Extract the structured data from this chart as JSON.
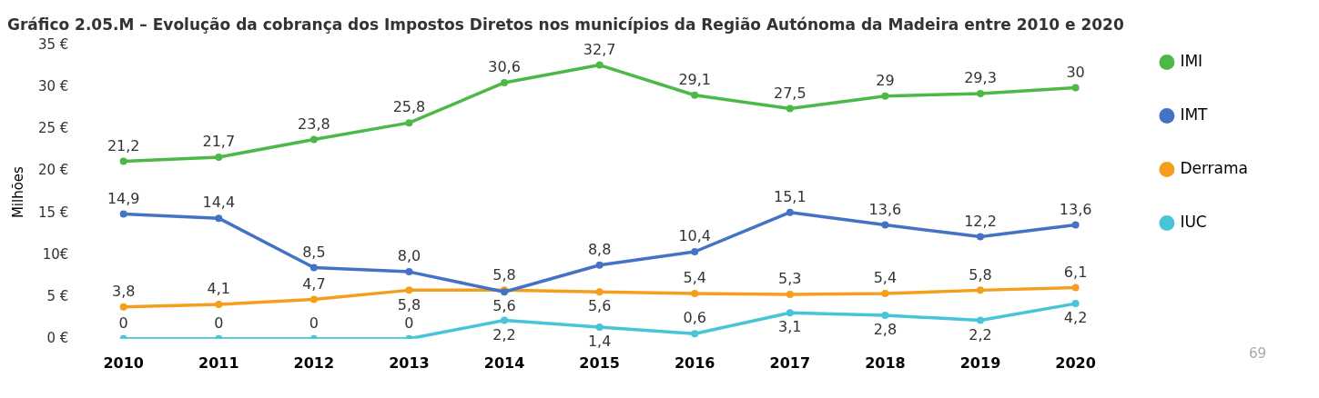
{
  "chart_data": {
    "type": "line",
    "title": "Gráfico 2.05.M – Evolução da cobrança dos Impostos Diretos nos municípios da Região Autónoma da Madeira entre 2010 e 2020",
    "ylabel": "Milhões",
    "categories": [
      "2010",
      "2011",
      "2012",
      "2013",
      "2014",
      "2015",
      "2016",
      "2017",
      "2018",
      "2019",
      "2020"
    ],
    "series": [
      {
        "name": "IMI",
        "color": "#4db848",
        "values": [
          21.2,
          21.7,
          23.8,
          25.8,
          30.6,
          32.7,
          29.1,
          27.5,
          29,
          29.3,
          30
        ],
        "value_labels": [
          "21,2",
          "21,7",
          "23,8",
          "25,8",
          "30,6",
          "32,7",
          "29,1",
          "27,5",
          "29",
          "29,3",
          "30"
        ]
      },
      {
        "name": "IMT",
        "color": "#4472c4",
        "values": [
          14.9,
          14.4,
          8.5,
          8.0,
          5.6,
          8.8,
          10.4,
          15.1,
          13.6,
          12.2,
          13.6
        ],
        "value_labels": [
          "14,9",
          "14,4",
          "8,5",
          "8,0",
          "5,6",
          "8,8",
          "10,4",
          "15,1",
          "13,6",
          "12,2",
          "13,6"
        ]
      },
      {
        "name": "Derrama",
        "color": "#f59e1b",
        "values": [
          3.8,
          4.1,
          4.7,
          5.8,
          5.8,
          5.6,
          5.4,
          5.3,
          5.4,
          5.8,
          6.1
        ],
        "value_labels": [
          "3,8",
          "4,1",
          "4,7",
          "5,8",
          "5,8",
          "5,6",
          "5,4",
          "5,3",
          "5,4",
          "5,8",
          "6,1"
        ]
      },
      {
        "name": "IUC",
        "color": "#48c4d8",
        "values": [
          0,
          0,
          0,
          0,
          2.2,
          1.4,
          0.6,
          3.1,
          2.8,
          2.2,
          4.2
        ],
        "value_labels": [
          "0",
          "0",
          "0",
          "0",
          "2,2",
          "1,4",
          "0,6",
          "3,1",
          "2,8",
          "2,2",
          "4,2"
        ]
      }
    ],
    "ylim": [
      0,
      35
    ],
    "yticks": [
      {
        "value": 0,
        "label": "0 €"
      },
      {
        "value": 5,
        "label": "5 €"
      },
      {
        "value": 10,
        "label": "10€"
      },
      {
        "value": 15,
        "label": "15 €"
      },
      {
        "value": 20,
        "label": "20 €"
      },
      {
        "value": 25,
        "label": "25 €"
      },
      {
        "value": 30,
        "label": "30 €"
      },
      {
        "value": 35,
        "label": "35 €"
      }
    ],
    "grid": false,
    "legend": "right",
    "marker": "circle",
    "line_style": "solid",
    "annotations": [
      "69"
    ]
  }
}
